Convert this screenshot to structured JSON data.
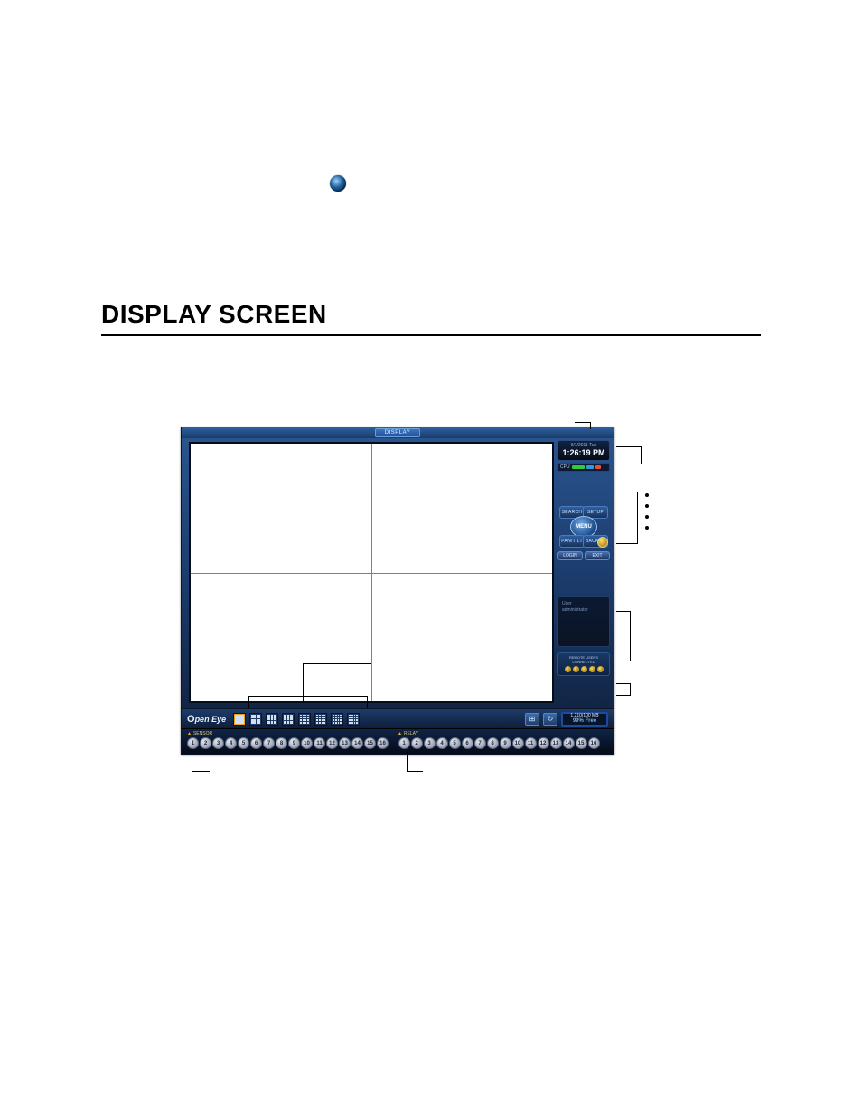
{
  "heading": "DISPLAY SCREEN",
  "app": {
    "title": "DISPLAY",
    "date": "9/1/2011 Tue",
    "time": "1:26:19 PM",
    "cpu_label": "CPU",
    "menu": {
      "search": "SEARCH",
      "setup": "SETUP",
      "center": "MENU",
      "pantilt": "PAN/TILT",
      "backup": "BACKUP"
    },
    "login": "LOGIN",
    "exit": "EXIT",
    "user_box_line1": "User",
    "user_box_line2": "administrator",
    "remote_title": "REMOTE USERS CONNECTED",
    "logo": "Open Eye",
    "storage_line1": "1,210/100 MB",
    "storage_line2": "99% Free",
    "sensor_label": "SENSOR",
    "relay_label": "RELAY",
    "sensor_count": 16,
    "relay_count": 16
  },
  "colors": {
    "app_gradient_top": "#2b5690",
    "app_gradient_bottom": "#0f1d38",
    "accent_yellow": "#f0a020",
    "panel_border": "#2a4c80"
  }
}
